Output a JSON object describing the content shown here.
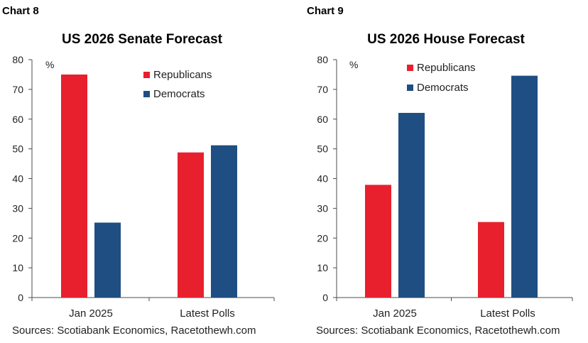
{
  "colors": {
    "republicans": "#e8202e",
    "democrats": "#1f4e82",
    "axis": "#4d4d4d",
    "text": "#222222"
  },
  "chart_data": [
    {
      "chart_label": "Chart 8",
      "type": "bar",
      "title": "US 2026 Senate Forecast",
      "unit_label": "%",
      "categories": [
        "Jan 2025",
        "Latest Polls"
      ],
      "series": [
        {
          "name": "Republicans",
          "color": "#e8202e",
          "values": [
            75,
            48.8
          ]
        },
        {
          "name": "Democrats",
          "color": "#1f4e82",
          "values": [
            25.2,
            51.2
          ]
        }
      ],
      "ylim": [
        0,
        80
      ],
      "yticks": [
        0,
        10,
        20,
        30,
        40,
        50,
        60,
        70,
        80
      ],
      "legend": "top-right",
      "grid": false,
      "source": "Sources: Scotiabank Economics, Racetothewh.com"
    },
    {
      "chart_label": "Chart 9",
      "type": "bar",
      "title": "US 2026 House Forecast",
      "unit_label": "%",
      "categories": [
        "Jan 2025",
        "Latest Polls"
      ],
      "series": [
        {
          "name": "Republicans",
          "color": "#e8202e",
          "values": [
            37.9,
            25.4
          ]
        },
        {
          "name": "Democrats",
          "color": "#1f4e82",
          "values": [
            62.1,
            74.6
          ]
        }
      ],
      "ylim": [
        0,
        80
      ],
      "yticks": [
        0,
        10,
        20,
        30,
        40,
        50,
        60,
        70,
        80
      ],
      "legend": "top-center",
      "grid": false,
      "source": "Sources: Scotiabank Economics, Racetothewh.com"
    }
  ]
}
